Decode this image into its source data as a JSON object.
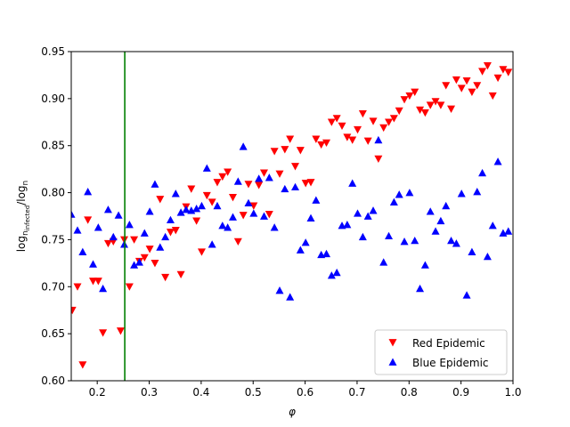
{
  "chart_data": {
    "type": "scatter",
    "title": "",
    "xlabel": "φ",
    "ylabel_main": "log",
    "ylabel_sub1": "n",
    "ylabel_sub1b": "infected",
    "ylabel_mid": "/log",
    "ylabel_sub2": "n",
    "xlim": [
      0.15,
      1.0
    ],
    "ylim": [
      0.6,
      0.95
    ],
    "xticks": [
      0.2,
      0.3,
      0.4,
      0.5,
      0.6,
      0.7,
      0.8,
      0.9,
      1.0
    ],
    "xtick_labels": [
      "0.2",
      "0.3",
      "0.4",
      "0.5",
      "0.6",
      "0.7",
      "0.8",
      "0.9",
      "1.0"
    ],
    "yticks": [
      0.6,
      0.65,
      0.7,
      0.75,
      0.8,
      0.85,
      0.9,
      0.95
    ],
    "ytick_labels": [
      "0.60",
      "0.65",
      "0.70",
      "0.75",
      "0.80",
      "0.85",
      "0.90",
      "0.95"
    ],
    "grid": false,
    "legend_position": "bottom-right",
    "vline": {
      "x": 0.253,
      "color": "#008000"
    },
    "series": [
      {
        "name": "Red Epidemic",
        "marker": "triangle-down",
        "color": "#ff0000",
        "points": [
          [
            0.152,
            0.675
          ],
          [
            0.162,
            0.7
          ],
          [
            0.172,
            0.617
          ],
          [
            0.182,
            0.771
          ],
          [
            0.192,
            0.706
          ],
          [
            0.202,
            0.706
          ],
          [
            0.211,
            0.651
          ],
          [
            0.221,
            0.746
          ],
          [
            0.231,
            0.748
          ],
          [
            0.245,
            0.653
          ],
          [
            0.252,
            0.75
          ],
          [
            0.262,
            0.7
          ],
          [
            0.271,
            0.75
          ],
          [
            0.281,
            0.727
          ],
          [
            0.291,
            0.731
          ],
          [
            0.301,
            0.74
          ],
          [
            0.311,
            0.725
          ],
          [
            0.321,
            0.793
          ],
          [
            0.331,
            0.71
          ],
          [
            0.341,
            0.758
          ],
          [
            0.351,
            0.76
          ],
          [
            0.361,
            0.713
          ],
          [
            0.371,
            0.785
          ],
          [
            0.381,
            0.804
          ],
          [
            0.391,
            0.77
          ],
          [
            0.401,
            0.737
          ],
          [
            0.411,
            0.797
          ],
          [
            0.421,
            0.79
          ],
          [
            0.431,
            0.811
          ],
          [
            0.441,
            0.817
          ],
          [
            0.451,
            0.822
          ],
          [
            0.461,
            0.795
          ],
          [
            0.471,
            0.748
          ],
          [
            0.481,
            0.776
          ],
          [
            0.491,
            0.809
          ],
          [
            0.501,
            0.786
          ],
          [
            0.511,
            0.808
          ],
          [
            0.521,
            0.821
          ],
          [
            0.531,
            0.777
          ],
          [
            0.541,
            0.844
          ],
          [
            0.551,
            0.82
          ],
          [
            0.561,
            0.846
          ],
          [
            0.571,
            0.857
          ],
          [
            0.581,
            0.828
          ],
          [
            0.591,
            0.845
          ],
          [
            0.601,
            0.81
          ],
          [
            0.611,
            0.811
          ],
          [
            0.621,
            0.857
          ],
          [
            0.631,
            0.851
          ],
          [
            0.641,
            0.853
          ],
          [
            0.651,
            0.875
          ],
          [
            0.661,
            0.879
          ],
          [
            0.671,
            0.871
          ],
          [
            0.681,
            0.859
          ],
          [
            0.691,
            0.856
          ],
          [
            0.701,
            0.867
          ],
          [
            0.711,
            0.884
          ],
          [
            0.721,
            0.855
          ],
          [
            0.731,
            0.876
          ],
          [
            0.741,
            0.836
          ],
          [
            0.751,
            0.869
          ],
          [
            0.761,
            0.875
          ],
          [
            0.771,
            0.879
          ],
          [
            0.781,
            0.887
          ],
          [
            0.791,
            0.899
          ],
          [
            0.801,
            0.903
          ],
          [
            0.811,
            0.907
          ],
          [
            0.821,
            0.888
          ],
          [
            0.831,
            0.885
          ],
          [
            0.841,
            0.893
          ],
          [
            0.851,
            0.897
          ],
          [
            0.861,
            0.893
          ],
          [
            0.871,
            0.914
          ],
          [
            0.881,
            0.889
          ],
          [
            0.891,
            0.92
          ],
          [
            0.901,
            0.911
          ],
          [
            0.911,
            0.919
          ],
          [
            0.921,
            0.907
          ],
          [
            0.931,
            0.914
          ],
          [
            0.941,
            0.929
          ],
          [
            0.951,
            0.935
          ],
          [
            0.961,
            0.903
          ],
          [
            0.971,
            0.922
          ],
          [
            0.981,
            0.931
          ],
          [
            0.991,
            0.928
          ]
        ]
      },
      {
        "name": "Blue Epidemic",
        "marker": "triangle-up",
        "color": "#0000ff",
        "points": [
          [
            0.15,
            0.777
          ],
          [
            0.162,
            0.76
          ],
          [
            0.172,
            0.737
          ],
          [
            0.182,
            0.801
          ],
          [
            0.192,
            0.724
          ],
          [
            0.202,
            0.763
          ],
          [
            0.211,
            0.698
          ],
          [
            0.221,
            0.782
          ],
          [
            0.231,
            0.753
          ],
          [
            0.241,
            0.776
          ],
          [
            0.252,
            0.745
          ],
          [
            0.262,
            0.766
          ],
          [
            0.271,
            0.723
          ],
          [
            0.281,
            0.726
          ],
          [
            0.291,
            0.757
          ],
          [
            0.301,
            0.78
          ],
          [
            0.311,
            0.809
          ],
          [
            0.321,
            0.742
          ],
          [
            0.331,
            0.753
          ],
          [
            0.341,
            0.771
          ],
          [
            0.351,
            0.799
          ],
          [
            0.361,
            0.779
          ],
          [
            0.371,
            0.782
          ],
          [
            0.381,
            0.781
          ],
          [
            0.391,
            0.783
          ],
          [
            0.401,
            0.786
          ],
          [
            0.411,
            0.826
          ],
          [
            0.421,
            0.745
          ],
          [
            0.431,
            0.786
          ],
          [
            0.441,
            0.765
          ],
          [
            0.451,
            0.763
          ],
          [
            0.461,
            0.774
          ],
          [
            0.471,
            0.812
          ],
          [
            0.481,
            0.849
          ],
          [
            0.491,
            0.789
          ],
          [
            0.501,
            0.778
          ],
          [
            0.511,
            0.815
          ],
          [
            0.521,
            0.775
          ],
          [
            0.531,
            0.816
          ],
          [
            0.541,
            0.763
          ],
          [
            0.551,
            0.696
          ],
          [
            0.561,
            0.804
          ],
          [
            0.571,
            0.689
          ],
          [
            0.581,
            0.806
          ],
          [
            0.591,
            0.739
          ],
          [
            0.601,
            0.747
          ],
          [
            0.611,
            0.773
          ],
          [
            0.621,
            0.792
          ],
          [
            0.631,
            0.734
          ],
          [
            0.641,
            0.735
          ],
          [
            0.651,
            0.712
          ],
          [
            0.661,
            0.715
          ],
          [
            0.671,
            0.765
          ],
          [
            0.681,
            0.766
          ],
          [
            0.691,
            0.81
          ],
          [
            0.701,
            0.778
          ],
          [
            0.711,
            0.753
          ],
          [
            0.721,
            0.775
          ],
          [
            0.731,
            0.781
          ],
          [
            0.741,
            0.856
          ],
          [
            0.751,
            0.726
          ],
          [
            0.761,
            0.754
          ],
          [
            0.771,
            0.79
          ],
          [
            0.781,
            0.798
          ],
          [
            0.791,
            0.748
          ],
          [
            0.801,
            0.8
          ],
          [
            0.811,
            0.749
          ],
          [
            0.821,
            0.698
          ],
          [
            0.831,
            0.723
          ],
          [
            0.841,
            0.78
          ],
          [
            0.851,
            0.759
          ],
          [
            0.861,
            0.77
          ],
          [
            0.871,
            0.786
          ],
          [
            0.881,
            0.749
          ],
          [
            0.891,
            0.746
          ],
          [
            0.901,
            0.799
          ],
          [
            0.911,
            0.691
          ],
          [
            0.921,
            0.737
          ],
          [
            0.931,
            0.801
          ],
          [
            0.941,
            0.821
          ],
          [
            0.951,
            0.732
          ],
          [
            0.961,
            0.765
          ],
          [
            0.971,
            0.833
          ],
          [
            0.981,
            0.757
          ],
          [
            0.991,
            0.759
          ]
        ]
      }
    ]
  }
}
